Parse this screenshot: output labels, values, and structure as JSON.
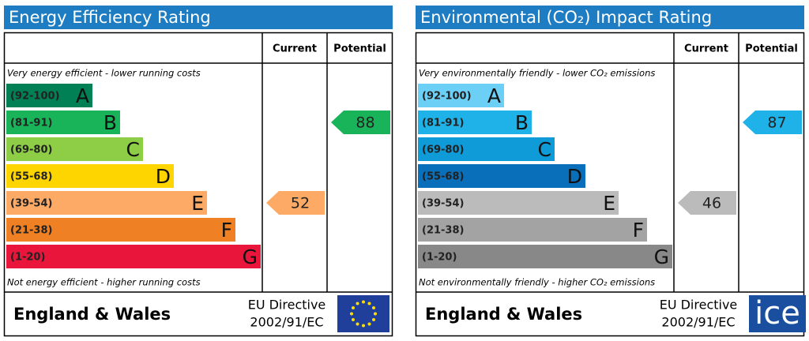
{
  "panels": [
    {
      "title": "Energy Efficiency Rating",
      "headers": [
        "Current",
        "Potential"
      ],
      "top_note": "Very energy efficient - lower running costs",
      "bands": [
        {
          "range": "(92-100)",
          "letter": "A",
          "color": "#008054"
        },
        {
          "range": "(81-91)",
          "letter": "B",
          "color": "#19b459"
        },
        {
          "range": "(69-80)",
          "letter": "C",
          "color": "#8dce46"
        },
        {
          "range": "(55-68)",
          "letter": "D",
          "color": "#ffd500"
        },
        {
          "range": "(39-54)",
          "letter": "E",
          "color": "#fcaa65"
        },
        {
          "range": "(21-38)",
          "letter": "F",
          "color": "#ef8023"
        },
        {
          "range": "(1-20)",
          "letter": "G",
          "color": "#e9153b"
        }
      ],
      "bottom_note": "Not energy efficient - higher running costs",
      "current": 52,
      "potential": 88,
      "region": "England & Wales",
      "directive": [
        "EU Directive",
        "2002/91/EC"
      ]
    },
    {
      "title": "Environmental (CO₂) Impact Rating",
      "headers": [
        "Current",
        "Potential"
      ],
      "top_note": "Very environmentally friendly - lower CO₂ emissions",
      "bands": [
        {
          "range": "(92-100)",
          "letter": "A",
          "color": "#6ccff6"
        },
        {
          "range": "(81-91)",
          "letter": "B",
          "color": "#1fb2e8"
        },
        {
          "range": "(69-80)",
          "letter": "C",
          "color": "#0f9ad8"
        },
        {
          "range": "(55-68)",
          "letter": "D",
          "color": "#0a6fba"
        },
        {
          "range": "(39-54)",
          "letter": "E",
          "color": "#bbbbbb"
        },
        {
          "range": "(21-38)",
          "letter": "F",
          "color": "#a3a3a3"
        },
        {
          "range": "(1-20)",
          "letter": "G",
          "color": "#888888"
        }
      ],
      "bottom_note": "Not environmentally friendly - higher CO₂ emissions",
      "current": 46,
      "potential": 87,
      "region": "England & Wales",
      "directive": [
        "EU Directive",
        "2002/91/EC"
      ],
      "watermark": "ice"
    }
  ]
}
